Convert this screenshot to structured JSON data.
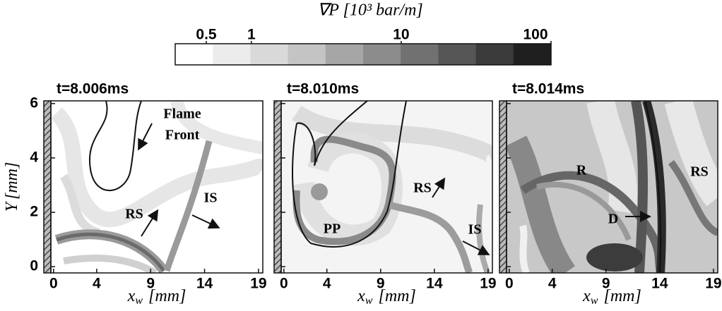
{
  "chart_data": [
    {
      "type": "contour",
      "title": "t=8.006ms",
      "xlabel": {
        "symbol": "x",
        "sub": "w",
        "unit": "[mm]"
      },
      "ylabel": {
        "symbol": "Y",
        "unit": "[mm]"
      },
      "xlim": [
        -0.25,
        19.4
      ],
      "ylim": [
        -0.23,
        6.1
      ],
      "xticks": [
        0,
        4,
        9,
        14,
        19
      ],
      "yticks": [
        0,
        2,
        4,
        6
      ],
      "annotations": [
        "Flame",
        "Front",
        "RS",
        "IS"
      ]
    },
    {
      "type": "contour",
      "title": "t=8.010ms",
      "xlabel": {
        "symbol": "x",
        "sub": "w",
        "unit": "[mm]"
      },
      "xlim": [
        -0.25,
        19.4
      ],
      "ylim": [
        -0.23,
        6.1
      ],
      "xticks": [
        0,
        4,
        9,
        14,
        19
      ],
      "yticks": [
        0,
        2,
        4,
        6
      ],
      "annotations": [
        "PP",
        "RS",
        "IS"
      ]
    },
    {
      "type": "contour",
      "title": "t=8.014ms",
      "xlabel": {
        "symbol": "x",
        "sub": "w",
        "unit": "[mm]"
      },
      "xlim": [
        -0.25,
        19.4
      ],
      "ylim": [
        -0.23,
        6.1
      ],
      "xticks": [
        0,
        4,
        9,
        14,
        19
      ],
      "yticks": [
        0,
        2,
        4,
        6
      ],
      "annotations": [
        "R",
        "D",
        "RS"
      ]
    },
    {
      "type": "colorbar",
      "title": "∇P [10³ bar/m]",
      "log_scale": true,
      "xlim": [
        0.31,
        100
      ],
      "xticks": [
        0.5,
        1,
        10,
        100
      ],
      "colors": [
        "#ffffff",
        "#ececec",
        "#d9d9d9",
        "#c4c4c4",
        "#a6a6a6",
        "#8c8c8c",
        "#717171",
        "#565656",
        "#3b3b3b",
        "#1f1f1f"
      ]
    }
  ]
}
